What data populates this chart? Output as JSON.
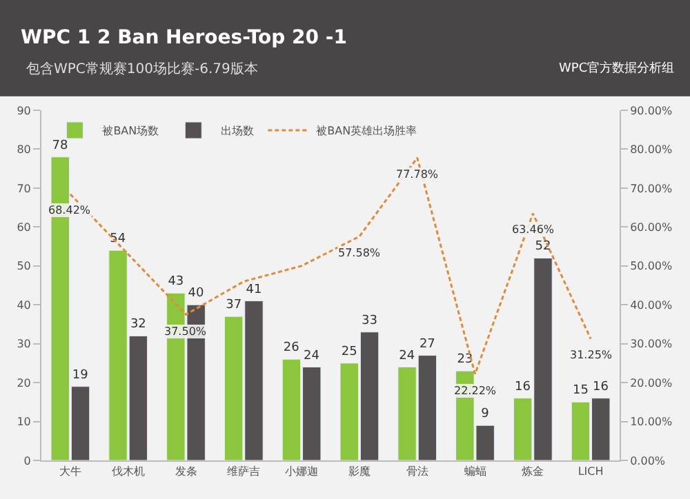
{
  "chart_data": {
    "type": "bar",
    "title": "WPC 1 2 Ban Heroes-Top 20 -1",
    "subtitle": "包含WPC常规赛100场比赛-6.79版本",
    "annotations": [
      "WPC官方数据分析组"
    ],
    "categories": [
      "大牛",
      "伐木机",
      "发条",
      "维萨吉",
      "小娜迦",
      "影魔",
      "骨法",
      "蝙蝠",
      "炼金",
      "LICH"
    ],
    "series": [
      {
        "name": "被BAN场数",
        "color": "#8cc63f",
        "values": [
          78,
          54,
          43,
          37,
          26,
          25,
          24,
          23,
          16,
          15
        ]
      },
      {
        "name": "出场数",
        "color": "#555052",
        "values": [
          19,
          32,
          40,
          41,
          24,
          33,
          27,
          9,
          52,
          16
        ]
      },
      {
        "name": "被BAN英雄出场胜率",
        "type": "line",
        "axis": "y2",
        "color": "#e08a3c",
        "line_style": "dashed",
        "marker": "none",
        "values": [
          68.42,
          53,
          37.5,
          46,
          50,
          57.58,
          77.78,
          22.22,
          63.46,
          31.25
        ],
        "value_labels": [
          "68.42%",
          null,
          "37.50%",
          null,
          null,
          "57.58%",
          "77.78%",
          "22.22%",
          "63.46%",
          "31.25%"
        ]
      }
    ],
    "data_labels": true,
    "ylim": [
      0,
      90
    ],
    "yticks": [
      0,
      10,
      20,
      30,
      40,
      50,
      60,
      70,
      80,
      90
    ],
    "y2lim": [
      0,
      90
    ],
    "y2ticks": [
      {
        "value": 0,
        "label": "0.00%"
      },
      {
        "value": 10,
        "label": "10.00%"
      },
      {
        "value": 20,
        "label": "20.00%"
      },
      {
        "value": 30,
        "label": "30.00%"
      },
      {
        "value": 40,
        "label": "40.00%"
      },
      {
        "value": 50,
        "label": "50.00%"
      },
      {
        "value": 60,
        "label": "60.00%"
      },
      {
        "value": 70,
        "label": "70.00%"
      },
      {
        "value": 80,
        "label": "80.00%"
      },
      {
        "value": 90,
        "label": "90.00%"
      }
    ],
    "legend": "top left",
    "grid": false
  }
}
